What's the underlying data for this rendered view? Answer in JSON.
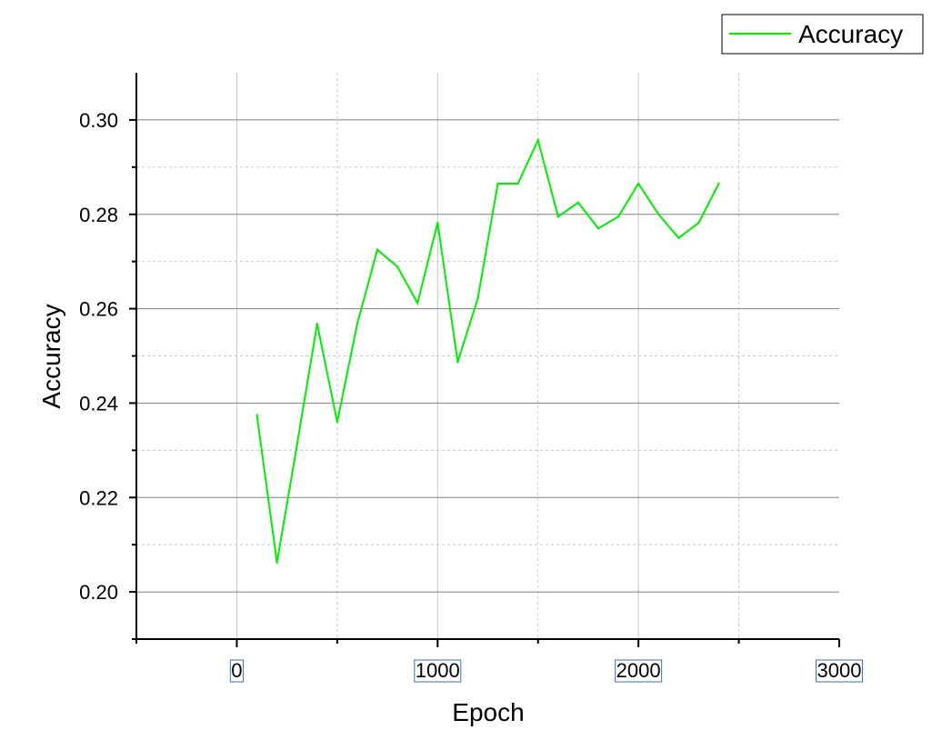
{
  "chart_data": {
    "type": "line",
    "title": "",
    "xlabel": "Epoch",
    "ylabel": "Accuracy",
    "xlim": [
      -500,
      3000
    ],
    "ylim": [
      0.19,
      0.31
    ],
    "x_ticks": [
      0,
      1000,
      2000,
      3000
    ],
    "y_ticks": [
      0.2,
      0.22,
      0.24,
      0.26,
      0.28,
      0.3
    ],
    "x_tick_labels": [
      "0",
      "1000",
      "2000",
      "3000"
    ],
    "y_tick_labels": [
      "0.20",
      "0.22",
      "0.24",
      "0.26",
      "0.28",
      "0.30"
    ],
    "grid": true,
    "legend_position": "top-right",
    "series": [
      {
        "name": "Accuracy",
        "color": "#00ee00",
        "x": [
          100,
          200,
          300,
          400,
          500,
          600,
          700,
          800,
          900,
          1000,
          1100,
          1200,
          1300,
          1400,
          1500,
          1600,
          1700,
          1800,
          1900,
          2000,
          2100,
          2200,
          2300,
          2400
        ],
        "y": [
          0.2375,
          0.2062,
          0.2312,
          0.2568,
          0.236,
          0.2568,
          0.2725,
          0.2689,
          0.2612,
          0.2782,
          0.2487,
          0.2622,
          0.2865,
          0.2865,
          0.2957,
          0.2795,
          0.2825,
          0.277,
          0.2795,
          0.2865,
          0.28,
          0.275,
          0.2782,
          0.2865
        ]
      }
    ]
  }
}
